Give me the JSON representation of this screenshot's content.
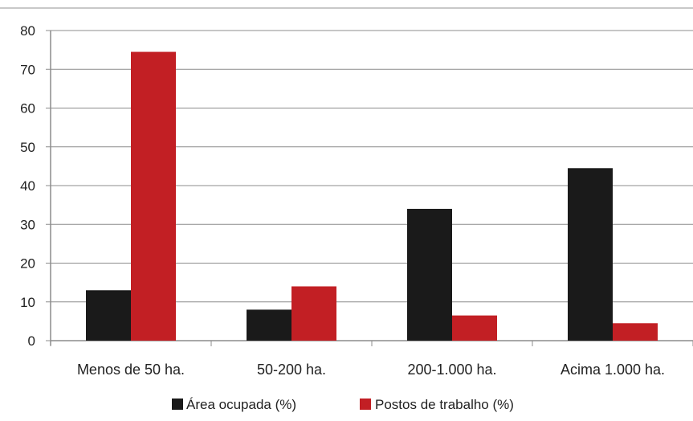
{
  "chart_data": {
    "type": "bar",
    "title": "",
    "xlabel": "",
    "ylabel": "",
    "categories": [
      "Menos de 50 ha.",
      "50-200 ha.",
      "200-1.000 ha.",
      "Acima 1.000 ha."
    ],
    "series": [
      {
        "name": "Área ocupada (%)",
        "color": "#1a1a1a",
        "values": [
          13,
          8,
          34,
          44.5
        ]
      },
      {
        "name": "Postos de trabalho (%)",
        "color": "#c21f24",
        "values": [
          74.5,
          14,
          6.5,
          4.5
        ]
      }
    ],
    "ylim": [
      0,
      80
    ],
    "yticks": [
      0,
      10,
      20,
      30,
      40,
      50,
      60,
      70,
      80
    ],
    "grid": true,
    "legend_position": "bottom"
  }
}
